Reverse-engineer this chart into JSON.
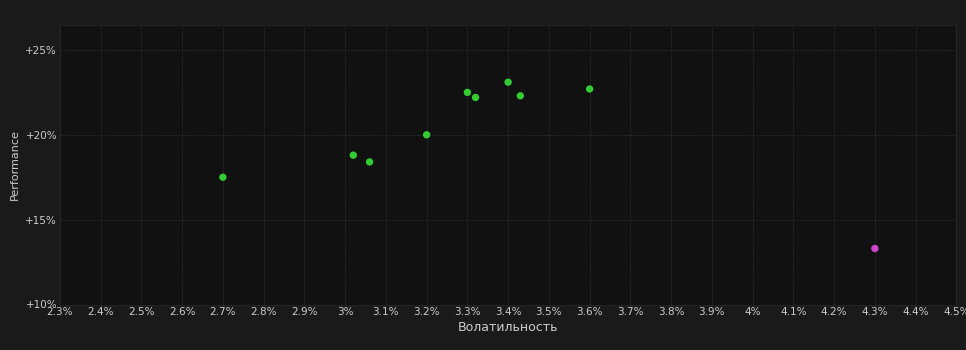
{
  "background_color": "#1a1a1a",
  "plot_bg_color": "#111111",
  "xlabel": "Волатильность",
  "ylabel": "Performance",
  "xlim": [
    0.023,
    0.045
  ],
  "ylim": [
    0.1,
    0.265
  ],
  "xtick_labels": [
    "2.3%",
    "2.4%",
    "2.5%",
    "2.6%",
    "2.7%",
    "2.8%",
    "2.9%",
    "3%",
    "3.1%",
    "3.2%",
    "3.3%",
    "3.4%",
    "3.5%",
    "3.6%",
    "3.7%",
    "3.8%",
    "3.9%",
    "4%",
    "4.1%",
    "4.2%",
    "4.3%",
    "4.4%",
    "4.5%"
  ],
  "xtick_values": [
    0.023,
    0.024,
    0.025,
    0.026,
    0.027,
    0.028,
    0.029,
    0.03,
    0.031,
    0.032,
    0.033,
    0.034,
    0.035,
    0.036,
    0.037,
    0.038,
    0.039,
    0.04,
    0.041,
    0.042,
    0.043,
    0.044,
    0.045
  ],
  "ytick_labels": [
    "+10%",
    "+15%",
    "+20%",
    "+25%"
  ],
  "ytick_values": [
    0.1,
    0.15,
    0.2,
    0.25
  ],
  "green_points_x": [
    0.027,
    0.0302,
    0.0306,
    0.032,
    0.033,
    0.0332,
    0.034,
    0.0343,
    0.036
  ],
  "green_points_y": [
    0.175,
    0.188,
    0.184,
    0.2,
    0.225,
    0.222,
    0.231,
    0.223,
    0.227
  ],
  "green_color": "#33cc33",
  "pink_point_x": [
    0.043
  ],
  "pink_point_y": [
    0.133
  ],
  "pink_color": "#cc44cc",
  "marker_size": 28,
  "xlabel_fontsize": 9,
  "ylabel_fontsize": 8,
  "tick_fontsize": 7.5,
  "tick_color": "#cccccc",
  "label_color": "#cccccc"
}
